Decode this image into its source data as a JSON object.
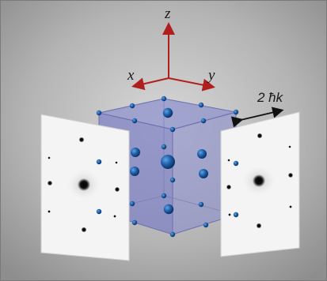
{
  "axes": {
    "z_label": "z",
    "x_label": "x",
    "y_label": "y",
    "color": "#b01e1e"
  },
  "scale_bar": {
    "label": "2 ħk"
  },
  "lattice": {
    "cube_color": "#7f84c4",
    "atom_color": "#1f5fa8"
  },
  "diffraction_panels": {
    "left": {
      "panel_color": "#f4f4f4",
      "spot_color": "#1a1a1a"
    },
    "right": {
      "panel_color": "#f4f4f4",
      "spot_color": "#1a1a1a"
    }
  },
  "background_color": "#a8a8a8"
}
